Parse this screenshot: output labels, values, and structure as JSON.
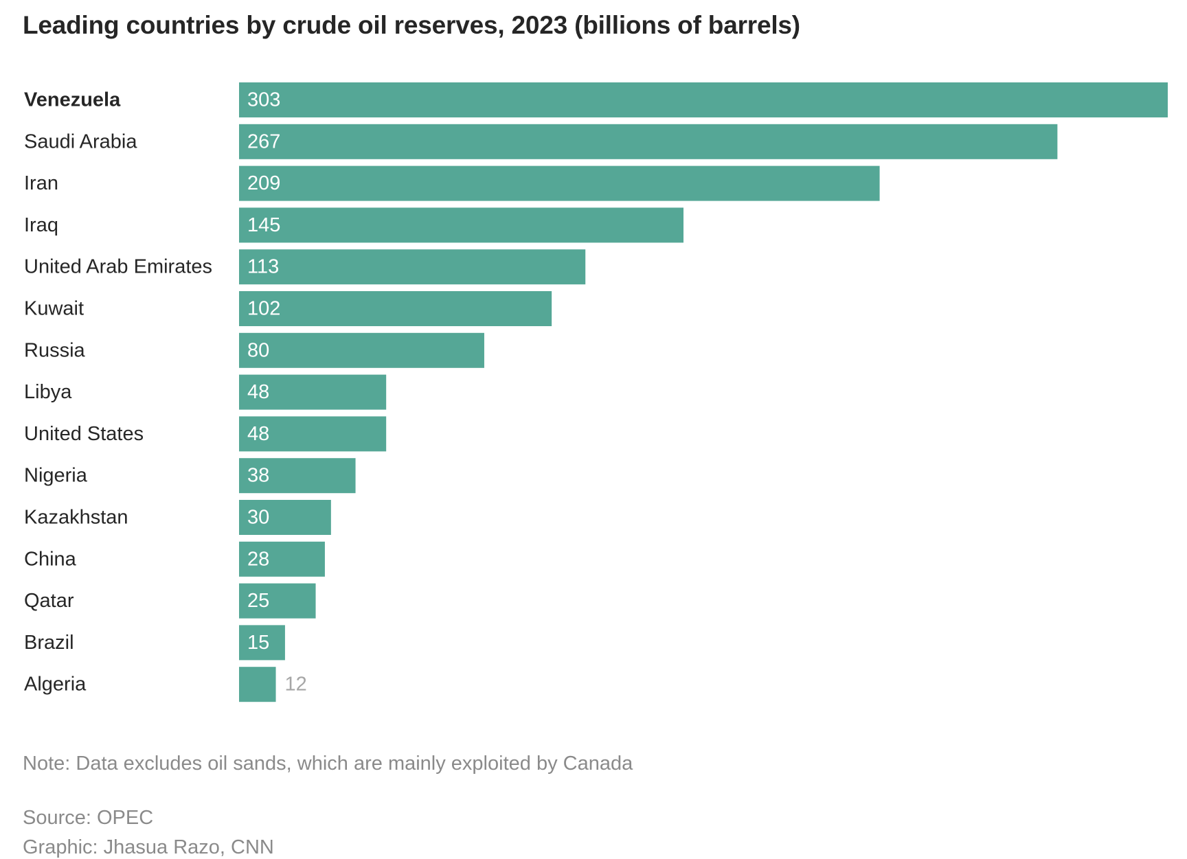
{
  "chart_data": {
    "type": "bar",
    "orientation": "horizontal",
    "title": "Leading countries by crude oil reserves, 2023 (billions of barrels)",
    "categories": [
      "Venezuela",
      "Saudi Arabia",
      "Iran",
      "Iraq",
      "United Arab Emirates",
      "Kuwait",
      "Russia",
      "Libya",
      "United States",
      "Nigeria",
      "Kazakhstan",
      "China",
      "Qatar",
      "Brazil",
      "Algeria"
    ],
    "values": [
      303,
      267,
      209,
      145,
      113,
      102,
      80,
      48,
      48,
      38,
      30,
      28,
      25,
      15,
      12
    ],
    "highlighted_category": "Venezuela",
    "xlim": [
      0,
      303
    ],
    "grid": false,
    "colors": {
      "bar": "#55a796",
      "label_inside": "#ffffff",
      "label_outside": "#a6a6a6",
      "category_text": "#262626"
    }
  },
  "footer": {
    "note": "Note: Data excludes oil sands, which are mainly exploited by Canada",
    "source": "Source: OPEC",
    "credit": "Graphic: Jhasua Razo, CNN"
  }
}
